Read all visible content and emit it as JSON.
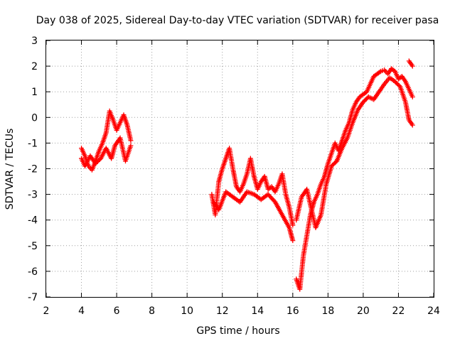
{
  "chart_data": {
    "type": "scatter",
    "title": "Day 038 of 2025, Sidereal Day-to-day VTEC variation (SDTVAR) for receiver pasa",
    "xlabel": "GPS time / hours",
    "ylabel": "SDTVAR / TECUs",
    "xlim": [
      2,
      24
    ],
    "ylim": [
      -7,
      3
    ],
    "xticks": [
      "2",
      "4",
      "6",
      "8",
      "10",
      "12",
      "14",
      "16",
      "18",
      "20",
      "22",
      "24"
    ],
    "yticks": [
      "3",
      "2",
      "1",
      "0",
      "-1",
      "-2",
      "-3",
      "-4",
      "-5",
      "-6",
      "-7"
    ],
    "grid": true,
    "marker": "plus",
    "color": "#ff0000",
    "segments": [
      [
        [
          4.0,
          -1.2
        ],
        [
          4.2,
          -1.5
        ],
        [
          4.4,
          -1.9
        ],
        [
          4.6,
          -2.05
        ],
        [
          4.8,
          -1.7
        ],
        [
          5.0,
          -1.3
        ],
        [
          5.2,
          -1.0
        ],
        [
          5.4,
          -0.6
        ],
        [
          5.6,
          0.25
        ],
        [
          5.8,
          -0.1
        ],
        [
          6.0,
          -0.5
        ],
        [
          6.2,
          -0.2
        ],
        [
          6.4,
          0.1
        ],
        [
          6.6,
          -0.3
        ],
        [
          6.8,
          -0.9
        ]
      ],
      [
        [
          4.0,
          -1.6
        ],
        [
          4.2,
          -1.9
        ],
        [
          4.5,
          -1.5
        ],
        [
          4.8,
          -1.8
        ],
        [
          5.1,
          -1.6
        ],
        [
          5.4,
          -1.2
        ],
        [
          5.7,
          -1.6
        ],
        [
          5.9,
          -1.1
        ],
        [
          6.2,
          -0.8
        ],
        [
          6.5,
          -1.7
        ],
        [
          6.8,
          -1.1
        ]
      ],
      [
        [
          11.4,
          -3.0
        ],
        [
          11.6,
          -3.8
        ],
        [
          11.8,
          -2.5
        ],
        [
          12.0,
          -2.0
        ],
        [
          12.2,
          -1.6
        ],
        [
          12.4,
          -1.2
        ],
        [
          12.6,
          -2.0
        ],
        [
          12.8,
          -2.7
        ],
        [
          13.0,
          -2.9
        ],
        [
          13.2,
          -2.6
        ],
        [
          13.4,
          -2.2
        ],
        [
          13.6,
          -1.6
        ],
        [
          13.8,
          -2.3
        ],
        [
          14.0,
          -2.8
        ],
        [
          14.2,
          -2.5
        ],
        [
          14.4,
          -2.3
        ],
        [
          14.6,
          -2.8
        ],
        [
          14.8,
          -2.7
        ],
        [
          15.0,
          -2.9
        ],
        [
          15.2,
          -2.6
        ],
        [
          15.4,
          -2.2
        ],
        [
          15.6,
          -3.0
        ],
        [
          15.8,
          -3.5
        ],
        [
          16.0,
          -4.2
        ]
      ],
      [
        [
          11.5,
          -3.3
        ],
        [
          11.8,
          -3.6
        ],
        [
          12.2,
          -2.9
        ],
        [
          12.6,
          -3.1
        ],
        [
          13.0,
          -3.3
        ],
        [
          13.4,
          -2.9
        ],
        [
          13.8,
          -3.0
        ],
        [
          14.2,
          -3.2
        ],
        [
          14.6,
          -3.0
        ],
        [
          15.0,
          -3.3
        ],
        [
          15.4,
          -3.8
        ],
        [
          15.8,
          -4.3
        ],
        [
          16.0,
          -4.8
        ]
      ],
      [
        [
          16.2,
          -6.3
        ],
        [
          16.4,
          -6.7
        ],
        [
          16.6,
          -5.4
        ],
        [
          16.8,
          -4.6
        ],
        [
          17.0,
          -3.8
        ],
        [
          17.2,
          -3.3
        ],
        [
          17.4,
          -3.0
        ],
        [
          17.6,
          -2.6
        ],
        [
          17.8,
          -2.3
        ],
        [
          18.0,
          -1.8
        ],
        [
          18.2,
          -1.4
        ],
        [
          18.4,
          -1.0
        ],
        [
          18.6,
          -1.3
        ],
        [
          18.8,
          -0.9
        ],
        [
          19.0,
          -0.5
        ],
        [
          19.2,
          -0.2
        ],
        [
          19.4,
          0.3
        ],
        [
          19.6,
          0.6
        ],
        [
          19.8,
          0.8
        ],
        [
          20.0,
          0.9
        ],
        [
          20.2,
          1.0
        ],
        [
          20.4,
          1.3
        ],
        [
          20.6,
          1.6
        ],
        [
          20.8,
          1.7
        ],
        [
          21.0,
          1.8
        ],
        [
          21.2,
          1.85
        ],
        [
          21.4,
          1.7
        ],
        [
          21.6,
          1.9
        ],
        [
          21.8,
          1.8
        ],
        [
          22.0,
          1.5
        ],
        [
          22.2,
          1.6
        ],
        [
          22.4,
          1.4
        ],
        [
          22.6,
          1.1
        ],
        [
          22.8,
          0.8
        ]
      ],
      [
        [
          16.2,
          -4.0
        ],
        [
          16.5,
          -3.1
        ],
        [
          16.8,
          -2.8
        ],
        [
          17.0,
          -3.4
        ],
        [
          17.3,
          -4.3
        ],
        [
          17.6,
          -3.8
        ],
        [
          17.9,
          -2.6
        ],
        [
          18.2,
          -1.9
        ],
        [
          18.5,
          -1.7
        ],
        [
          18.8,
          -1.2
        ],
        [
          19.1,
          -0.8
        ],
        [
          19.4,
          -0.2
        ],
        [
          19.7,
          0.3
        ],
        [
          20.0,
          0.6
        ],
        [
          20.3,
          0.8
        ],
        [
          20.6,
          0.7
        ],
        [
          20.9,
          1.0
        ],
        [
          21.2,
          1.3
        ],
        [
          21.5,
          1.55
        ],
        [
          21.8,
          1.4
        ],
        [
          22.1,
          1.2
        ],
        [
          22.4,
          0.6
        ],
        [
          22.6,
          -0.1
        ],
        [
          22.8,
          -0.3
        ]
      ],
      [
        [
          22.6,
          2.2
        ],
        [
          22.8,
          2.0
        ]
      ]
    ]
  }
}
